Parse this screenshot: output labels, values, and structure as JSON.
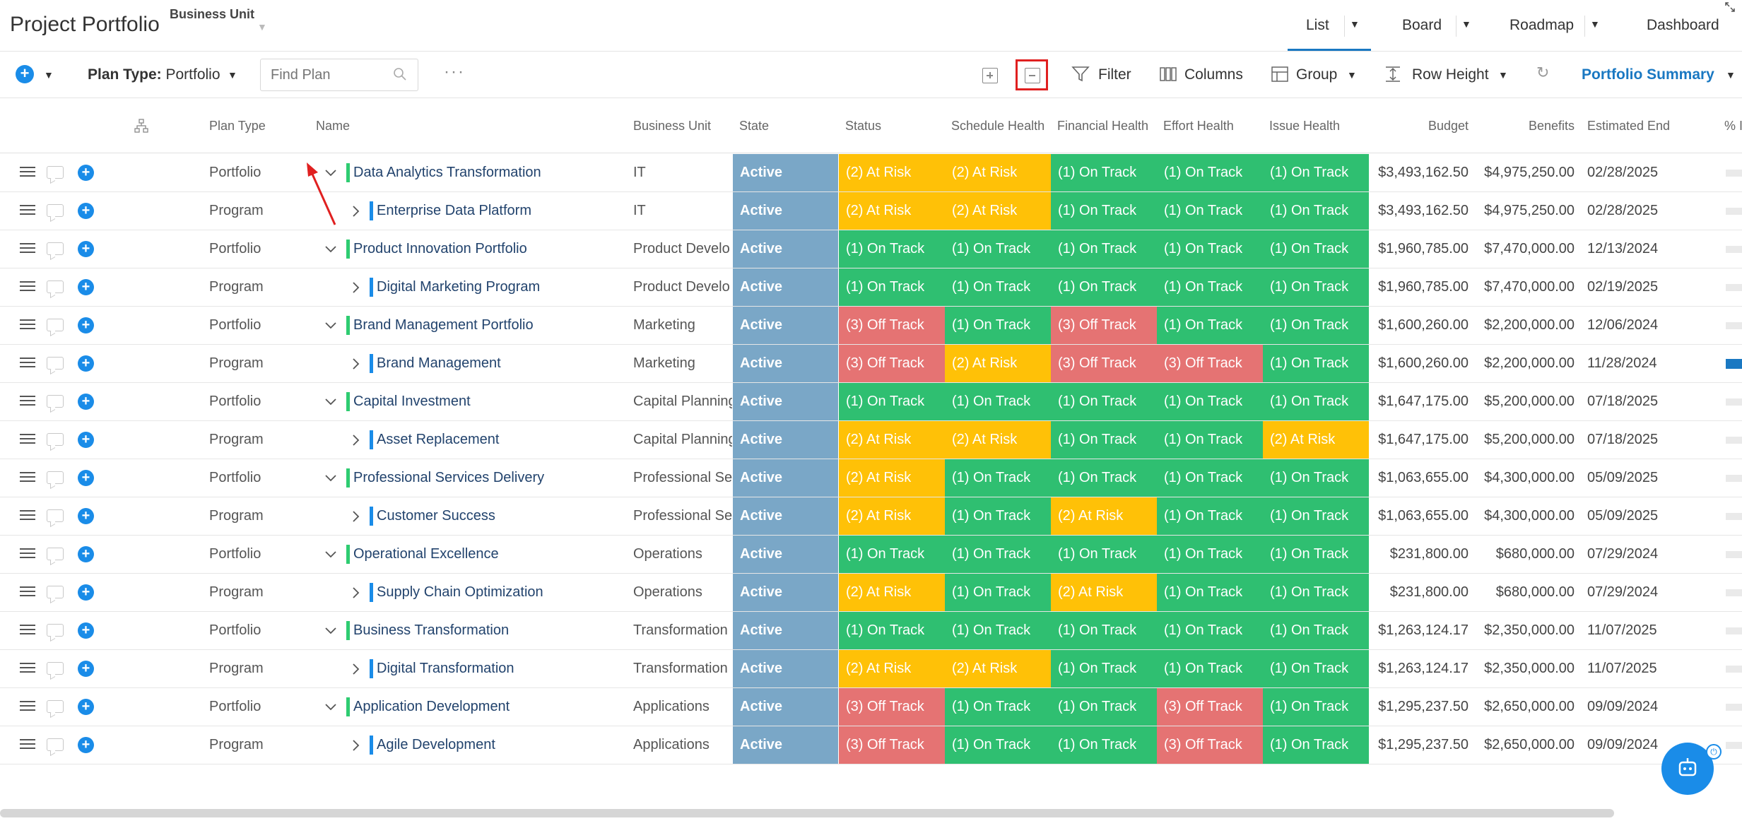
{
  "header": {
    "title": "Project Portfolio",
    "business_unit_label": "Business Unit",
    "views": [
      {
        "label": "List",
        "active": true
      },
      {
        "label": "Board",
        "active": false
      },
      {
        "label": "Roadmap",
        "active": false
      },
      {
        "label": "Dashboard",
        "active": false
      }
    ]
  },
  "toolbar": {
    "plan_type_label": "Plan Type:",
    "plan_type_value": "Portfolio",
    "find_placeholder": "Find Plan",
    "more": "···",
    "filter": "Filter",
    "columns": "Columns",
    "group": "Group",
    "row_height": "Row Height",
    "summary": "Portfolio Summary"
  },
  "columns": {
    "plan_type": "Plan Type",
    "name": "Name",
    "business_unit": "Business Unit",
    "state": "State",
    "status": "Status",
    "schedule_health": "Schedule Health",
    "financial_health": "Financial Health",
    "effort_health": "Effort Health",
    "issue_health": "Issue Health",
    "budget": "Budget",
    "benefits": "Benefits",
    "estimated_end": "Estimated End",
    "percent": "% I"
  },
  "rows": [
    {
      "type": "Portfolio",
      "name": "Data Analytics Transformation",
      "bu": "IT",
      "state": "Active",
      "status": "(2) At Risk",
      "schedule": "(2) At Risk",
      "financial": "(1) On Track",
      "effort": "(1) On Track",
      "issue": "(1) On Track",
      "budget": "$3,493,162.50",
      "benefits": "$4,975,250.00",
      "end": "02/28/2025"
    },
    {
      "type": "Program",
      "name": "Enterprise Data Platform",
      "bu": "IT",
      "state": "Active",
      "status": "(2) At Risk",
      "schedule": "(2) At Risk",
      "financial": "(1) On Track",
      "effort": "(1) On Track",
      "issue": "(1) On Track",
      "budget": "$3,493,162.50",
      "benefits": "$4,975,250.00",
      "end": "02/28/2025"
    },
    {
      "type": "Portfolio",
      "name": "Product Innovation Portfolio",
      "bu": "Product Develo",
      "state": "Active",
      "status": "(1) On Track",
      "schedule": "(1) On Track",
      "financial": "(1) On Track",
      "effort": "(1) On Track",
      "issue": "(1) On Track",
      "budget": "$1,960,785.00",
      "benefits": "$7,470,000.00",
      "end": "12/13/2024"
    },
    {
      "type": "Program",
      "name": "Digital Marketing Program",
      "bu": "Product Develo",
      "state": "Active",
      "status": "(1) On Track",
      "schedule": "(1) On Track",
      "financial": "(1) On Track",
      "effort": "(1) On Track",
      "issue": "(1) On Track",
      "budget": "$1,960,785.00",
      "benefits": "$7,470,000.00",
      "end": "02/19/2025"
    },
    {
      "type": "Portfolio",
      "name": "Brand Management Portfolio",
      "bu": "Marketing",
      "state": "Active",
      "status": "(3) Off Track",
      "schedule": "(1) On Track",
      "financial": "(3) Off Track",
      "effort": "(1) On Track",
      "issue": "(1) On Track",
      "budget": "$1,600,260.00",
      "benefits": "$2,200,000.00",
      "end": "12/06/2024"
    },
    {
      "type": "Program",
      "name": "Brand Management",
      "bu": "Marketing",
      "state": "Active",
      "status": "(3) Off Track",
      "schedule": "(2) At Risk",
      "financial": "(3) Off Track",
      "effort": "(3) Off Track",
      "issue": "(1) On Track",
      "budget": "$1,600,260.00",
      "benefits": "$2,200,000.00",
      "end": "11/28/2024"
    },
    {
      "type": "Portfolio",
      "name": "Capital Investment",
      "bu": "Capital Planning",
      "state": "Active",
      "status": "(1) On Track",
      "schedule": "(1) On Track",
      "financial": "(1) On Track",
      "effort": "(1) On Track",
      "issue": "(1) On Track",
      "budget": "$1,647,175.00",
      "benefits": "$5,200,000.00",
      "end": "07/18/2025"
    },
    {
      "type": "Program",
      "name": "Asset Replacement",
      "bu": "Capital Planning",
      "state": "Active",
      "status": "(2) At Risk",
      "schedule": "(2) At Risk",
      "financial": "(1) On Track",
      "effort": "(1) On Track",
      "issue": "(2) At Risk",
      "budget": "$1,647,175.00",
      "benefits": "$5,200,000.00",
      "end": "07/18/2025"
    },
    {
      "type": "Portfolio",
      "name": "Professional Services Delivery",
      "bu": "Professional Ser",
      "state": "Active",
      "status": "(2) At Risk",
      "schedule": "(1) On Track",
      "financial": "(1) On Track",
      "effort": "(1) On Track",
      "issue": "(1) On Track",
      "budget": "$1,063,655.00",
      "benefits": "$4,300,000.00",
      "end": "05/09/2025"
    },
    {
      "type": "Program",
      "name": "Customer Success",
      "bu": "Professional Ser",
      "state": "Active",
      "status": "(2) At Risk",
      "schedule": "(1) On Track",
      "financial": "(2) At Risk",
      "effort": "(1) On Track",
      "issue": "(1) On Track",
      "budget": "$1,063,655.00",
      "benefits": "$4,300,000.00",
      "end": "05/09/2025"
    },
    {
      "type": "Portfolio",
      "name": "Operational Excellence",
      "bu": "Operations",
      "state": "Active",
      "status": "(1) On Track",
      "schedule": "(1) On Track",
      "financial": "(1) On Track",
      "effort": "(1) On Track",
      "issue": "(1) On Track",
      "budget": "$231,800.00",
      "benefits": "$680,000.00",
      "end": "07/29/2024"
    },
    {
      "type": "Program",
      "name": "Supply Chain Optimization",
      "bu": "Operations",
      "state": "Active",
      "status": "(2) At Risk",
      "schedule": "(1) On Track",
      "financial": "(2) At Risk",
      "effort": "(1) On Track",
      "issue": "(1) On Track",
      "budget": "$231,800.00",
      "benefits": "$680,000.00",
      "end": "07/29/2024"
    },
    {
      "type": "Portfolio",
      "name": "Business Transformation",
      "bu": "Transformation",
      "state": "Active",
      "status": "(1) On Track",
      "schedule": "(1) On Track",
      "financial": "(1) On Track",
      "effort": "(1) On Track",
      "issue": "(1) On Track",
      "budget": "$1,263,124.17",
      "benefits": "$2,350,000.00",
      "end": "11/07/2025"
    },
    {
      "type": "Program",
      "name": "Digital Transformation",
      "bu": "Transformation",
      "state": "Active",
      "status": "(2) At Risk",
      "schedule": "(2) At Risk",
      "financial": "(1) On Track",
      "effort": "(1) On Track",
      "issue": "(1) On Track",
      "budget": "$1,263,124.17",
      "benefits": "$2,350,000.00",
      "end": "11/07/2025"
    },
    {
      "type": "Portfolio",
      "name": "Application Development",
      "bu": "Applications",
      "state": "Active",
      "status": "(3) Off Track",
      "schedule": "(1) On Track",
      "financial": "(1) On Track",
      "effort": "(3) Off Track",
      "issue": "(1) On Track",
      "budget": "$1,295,237.50",
      "benefits": "$2,650,000.00",
      "end": "09/09/2024"
    },
    {
      "type": "Program",
      "name": "Agile Development",
      "bu": "Applications",
      "state": "Active",
      "status": "(3) Off Track",
      "schedule": "(1) On Track",
      "financial": "(1) On Track",
      "effort": "(3) Off Track",
      "issue": "(1) On Track",
      "budget": "$1,295,237.50",
      "benefits": "$2,650,000.00",
      "end": "09/09/2024"
    }
  ],
  "status_colors": {
    "On Track": "#2fbf71",
    "At Risk": "#ffc107",
    "Off Track": "#e57373",
    "Active": "#7aa7c7"
  },
  "accent": "#1a8ce8"
}
